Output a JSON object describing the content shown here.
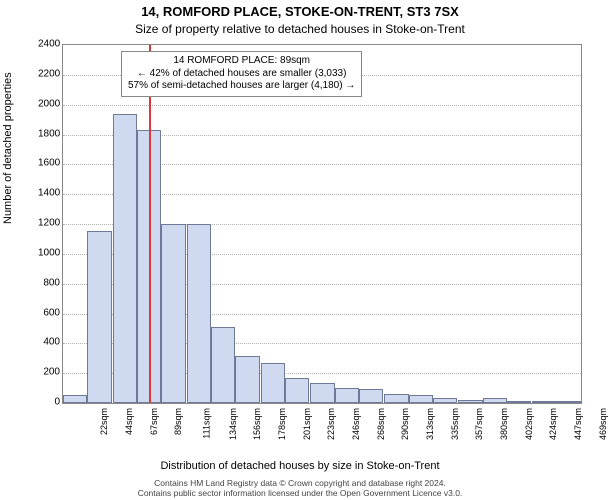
{
  "title_line1": "14, ROMFORD PLACE, STOKE-ON-TRENT, ST3 7SX",
  "title_line2": "Size of property relative to detached houses in Stoke-on-Trent",
  "ylabel": "Number of detached properties",
  "xlabel": "Distribution of detached houses by size in Stoke-on-Trent",
  "footer_line1": "Contains HM Land Registry data © Crown copyright and database right 2024.",
  "footer_line2": "Contains public sector information licensed under the Open Government Licence v3.0.",
  "annotation": {
    "line1": "14 ROMFORD PLACE: 89sqm",
    "line2": "← 42% of detached houses are smaller (3,033)",
    "line3": "57% of semi-detached houses are larger (4,180) →"
  },
  "chart": {
    "type": "histogram",
    "xlim": [
      11,
      480
    ],
    "ylim": [
      0,
      2400
    ],
    "ytick_step": 200,
    "xtick_start": 22,
    "xtick_step": 22.35,
    "xtick_count": 21,
    "xtick_unit": "sqm",
    "bar_color": "#cfdaf0",
    "bar_border_color": "#6f7a99",
    "grid_color": "#b0b0b0",
    "plot_border_color": "#888888",
    "marker_color": "#d93a3a",
    "marker_x": 89,
    "background_color": "#ffffff",
    "title_fontsize": 13,
    "subtitle_fontsize": 12,
    "label_fontsize": 11,
    "tick_fontsize": 10,
    "xtick_labels": [
      "22sqm",
      "44sqm",
      "67sqm",
      "89sqm",
      "111sqm",
      "134sqm",
      "156sqm",
      "178sqm",
      "201sqm",
      "223sqm",
      "246sqm",
      "268sqm",
      "290sqm",
      "313sqm",
      "335sqm",
      "357sqm",
      "380sqm",
      "402sqm",
      "424sqm",
      "447sqm",
      "469sqm"
    ],
    "bars": [
      {
        "x": 22,
        "value": 55
      },
      {
        "x": 44,
        "value": 1150
      },
      {
        "x": 67,
        "value": 1940
      },
      {
        "x": 89,
        "value": 1830
      },
      {
        "x": 111,
        "value": 1200
      },
      {
        "x": 134,
        "value": 1200
      },
      {
        "x": 156,
        "value": 510
      },
      {
        "x": 178,
        "value": 315
      },
      {
        "x": 201,
        "value": 270
      },
      {
        "x": 223,
        "value": 165
      },
      {
        "x": 246,
        "value": 135
      },
      {
        "x": 268,
        "value": 100
      },
      {
        "x": 290,
        "value": 95
      },
      {
        "x": 313,
        "value": 60
      },
      {
        "x": 335,
        "value": 55
      },
      {
        "x": 357,
        "value": 35
      },
      {
        "x": 380,
        "value": 20
      },
      {
        "x": 402,
        "value": 35
      },
      {
        "x": 424,
        "value": 10
      },
      {
        "x": 447,
        "value": 8
      },
      {
        "x": 469,
        "value": 10
      }
    ]
  }
}
